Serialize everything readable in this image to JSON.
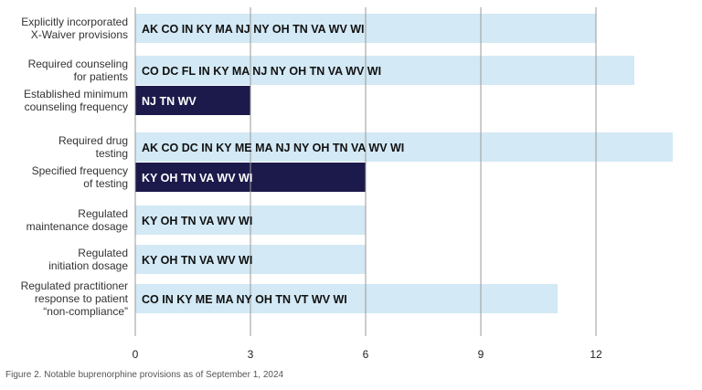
{
  "caption": "Figure 2. Notable buprenorphine provisions as of September 1, 2024",
  "colors": {
    "light": "#d3e9f5",
    "dark": "#1c1a4a",
    "dark_text": "#ffffff",
    "light_text": "#111111",
    "grid": "#999999"
  },
  "chart_data": {
    "type": "bar",
    "orientation": "horizontal",
    "title": "",
    "xlabel": "",
    "ylabel": "",
    "xlim": [
      0,
      15
    ],
    "xticks": [
      0,
      3,
      6,
      9,
      12
    ],
    "grid": true,
    "legend": "none",
    "bars": [
      {
        "label": [
          "Explicitly incorporated",
          "X-Waiver provisions"
        ],
        "value": 12,
        "states": "AK CO IN KY MA NJ NY OH TN VA WV WI",
        "style": "light"
      },
      {
        "label": [
          "Required counseling",
          "for patients"
        ],
        "value": 13,
        "states": "CO DC FL IN KY MA NJ NY OH TN VA WV WI",
        "style": "light"
      },
      {
        "label": [
          "Established minimum",
          "counseling frequency"
        ],
        "value": 3,
        "states": "NJ TN WV",
        "style": "dark"
      },
      {
        "label": [
          "Required drug",
          "testing"
        ],
        "value": 14,
        "states": "AK CO DC IN KY ME MA NJ NY OH TN VA WV WI",
        "style": "light"
      },
      {
        "label": [
          "Specified frequency",
          "of testing"
        ],
        "value": 6,
        "states": "KY OH TN VA WV WI",
        "style": "dark"
      },
      {
        "label": [
          "Regulated",
          "maintenance dosage"
        ],
        "value": 6,
        "states": "KY OH TN VA WV WI",
        "style": "light"
      },
      {
        "label": [
          "Regulated",
          "initiation dosage"
        ],
        "value": 6,
        "states": "KY OH TN VA WV WI",
        "style": "light"
      },
      {
        "label": [
          "Regulated practitioner",
          "response to patient",
          "“non-compliance”"
        ],
        "value": 11,
        "states": "CO IN KY ME MA NY OH TN VT WV WI",
        "style": "light"
      }
    ]
  }
}
